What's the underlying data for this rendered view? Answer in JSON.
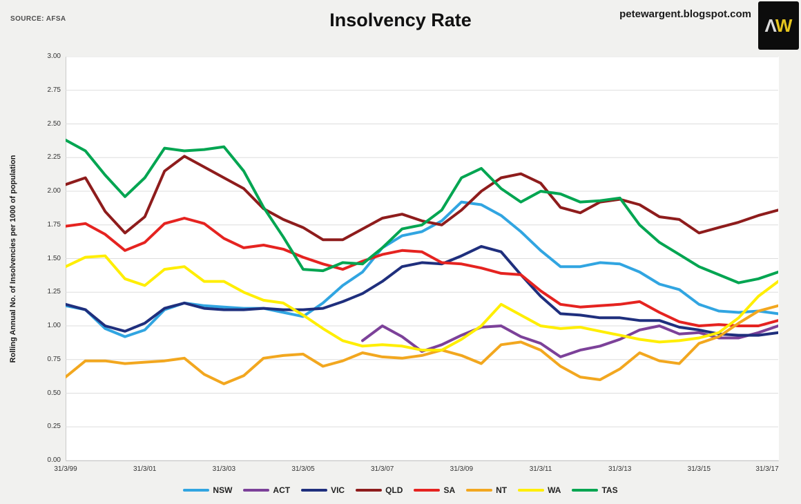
{
  "header": {
    "source": "SOURCE: AFSA",
    "title": "Insolvency Rate",
    "site": "petewargent.blogspot.com",
    "logo": {
      "letter_a": "Λ",
      "letter_w": "W",
      "bg_color": "#0c0c0c",
      "a_color": "#dcdcdc",
      "w_color": "#e6c51e"
    }
  },
  "chart_data": {
    "type": "line",
    "title": "Insolvency Rate",
    "ylabel": "Rolling Annual No. of Insolvencies per 1000 of population",
    "ylim": [
      0,
      3
    ],
    "y_tick_labels": [
      "0.00",
      "0.25",
      "0.50",
      "0.75",
      "1.00",
      "1.25",
      "1.50",
      "1.75",
      "2.00",
      "2.25",
      "2.50",
      "2.75",
      "3.00"
    ],
    "x_range": [
      0,
      18
    ],
    "x_start": 0,
    "x_step": 0.5,
    "x_note": "x in years after 31/3/99, semi-annual rolling-annual observations",
    "x_tick_positions": [
      0,
      2,
      4,
      6,
      8,
      10,
      12,
      14,
      16,
      18
    ],
    "x_tick_labels": [
      "31/3/99",
      "31/3/01",
      "31/3/03",
      "31/3/05",
      "31/3/07",
      "31/3/09",
      "31/3/11",
      "31/3/13",
      "31/3/15",
      "31/3/17"
    ],
    "grid": "horizontal",
    "legend_position": "bottom",
    "gridline_color": "#dddddd",
    "series": [
      {
        "name": "NSW",
        "color": "#31a5e1",
        "values": [
          1.15,
          1.12,
          0.98,
          0.92,
          0.97,
          1.12,
          1.17,
          1.15,
          1.14,
          1.13,
          1.13,
          1.1,
          1.07,
          1.17,
          1.3,
          1.4,
          1.58,
          1.67,
          1.7,
          1.78,
          1.92,
          1.9,
          1.82,
          1.7,
          1.56,
          1.44,
          1.44,
          1.47,
          1.46,
          1.4,
          1.31,
          1.27,
          1.16,
          1.11,
          1.1,
          1.11,
          1.09
        ]
      },
      {
        "name": "ACT",
        "color": "#7c4199",
        "values": [
          null,
          null,
          null,
          null,
          null,
          null,
          null,
          null,
          null,
          null,
          null,
          null,
          null,
          null,
          null,
          0.89,
          1.0,
          0.92,
          0.81,
          0.86,
          0.93,
          0.99,
          1.0,
          0.92,
          0.87,
          0.77,
          0.82,
          0.85,
          0.9,
          0.97,
          1.0,
          0.94,
          0.95,
          0.91,
          0.91,
          0.95,
          1.0
        ]
      },
      {
        "name": "VIC",
        "color": "#1f2f7d",
        "values": [
          1.16,
          1.12,
          1.0,
          0.96,
          1.02,
          1.13,
          1.17,
          1.13,
          1.12,
          1.12,
          1.13,
          1.12,
          1.12,
          1.13,
          1.18,
          1.24,
          1.33,
          1.44,
          1.47,
          1.46,
          1.52,
          1.59,
          1.55,
          1.38,
          1.22,
          1.09,
          1.08,
          1.06,
          1.06,
          1.04,
          1.04,
          0.99,
          0.97,
          0.94,
          0.93,
          0.93,
          0.95
        ]
      },
      {
        "name": "QLD",
        "color": "#8e1c1c",
        "values": [
          2.05,
          2.1,
          1.85,
          1.69,
          1.81,
          2.15,
          2.26,
          2.18,
          2.1,
          2.02,
          1.87,
          1.79,
          1.73,
          1.64,
          1.64,
          1.72,
          1.8,
          1.83,
          1.78,
          1.75,
          1.86,
          2.0,
          2.1,
          2.13,
          2.06,
          1.88,
          1.84,
          1.92,
          1.94,
          1.9,
          1.81,
          1.79,
          1.69,
          1.73,
          1.77,
          1.82,
          1.86
        ]
      },
      {
        "name": "SA",
        "color": "#e52320",
        "values": [
          1.74,
          1.76,
          1.68,
          1.56,
          1.62,
          1.76,
          1.8,
          1.76,
          1.65,
          1.58,
          1.6,
          1.57,
          1.51,
          1.46,
          1.42,
          1.48,
          1.53,
          1.56,
          1.55,
          1.47,
          1.46,
          1.43,
          1.39,
          1.38,
          1.26,
          1.16,
          1.14,
          1.15,
          1.16,
          1.18,
          1.1,
          1.03,
          1.0,
          1.01,
          1.0,
          1.0,
          1.04
        ]
      },
      {
        "name": "NT",
        "color": "#f2a71f",
        "values": [
          0.62,
          0.74,
          0.74,
          0.72,
          0.73,
          0.74,
          0.76,
          0.64,
          0.57,
          0.63,
          0.76,
          0.78,
          0.79,
          0.7,
          0.74,
          0.8,
          0.77,
          0.76,
          0.78,
          0.82,
          0.78,
          0.72,
          0.86,
          0.88,
          0.82,
          0.7,
          0.62,
          0.6,
          0.68,
          0.8,
          0.74,
          0.72,
          0.87,
          0.92,
          1.02,
          1.11,
          1.15
        ]
      },
      {
        "name": "WA",
        "color": "#ffee00",
        "values": [
          1.44,
          1.51,
          1.52,
          1.35,
          1.3,
          1.42,
          1.44,
          1.33,
          1.33,
          1.25,
          1.19,
          1.17,
          1.08,
          0.98,
          0.89,
          0.85,
          0.86,
          0.85,
          0.82,
          0.82,
          0.9,
          1.0,
          1.16,
          1.08,
          1.0,
          0.98,
          0.99,
          0.96,
          0.93,
          0.9,
          0.88,
          0.89,
          0.91,
          0.95,
          1.06,
          1.22,
          1.33
        ]
      },
      {
        "name": "TAS",
        "color": "#00a551",
        "values": [
          2.38,
          2.3,
          2.12,
          1.96,
          2.1,
          2.32,
          2.3,
          2.31,
          2.33,
          2.15,
          1.88,
          1.66,
          1.42,
          1.41,
          1.47,
          1.46,
          1.58,
          1.72,
          1.75,
          1.86,
          2.1,
          2.17,
          2.02,
          1.92,
          2.0,
          1.98,
          1.92,
          1.93,
          1.95,
          1.75,
          1.62,
          1.53,
          1.44,
          1.38,
          1.32,
          1.35,
          1.4
        ]
      }
    ]
  }
}
